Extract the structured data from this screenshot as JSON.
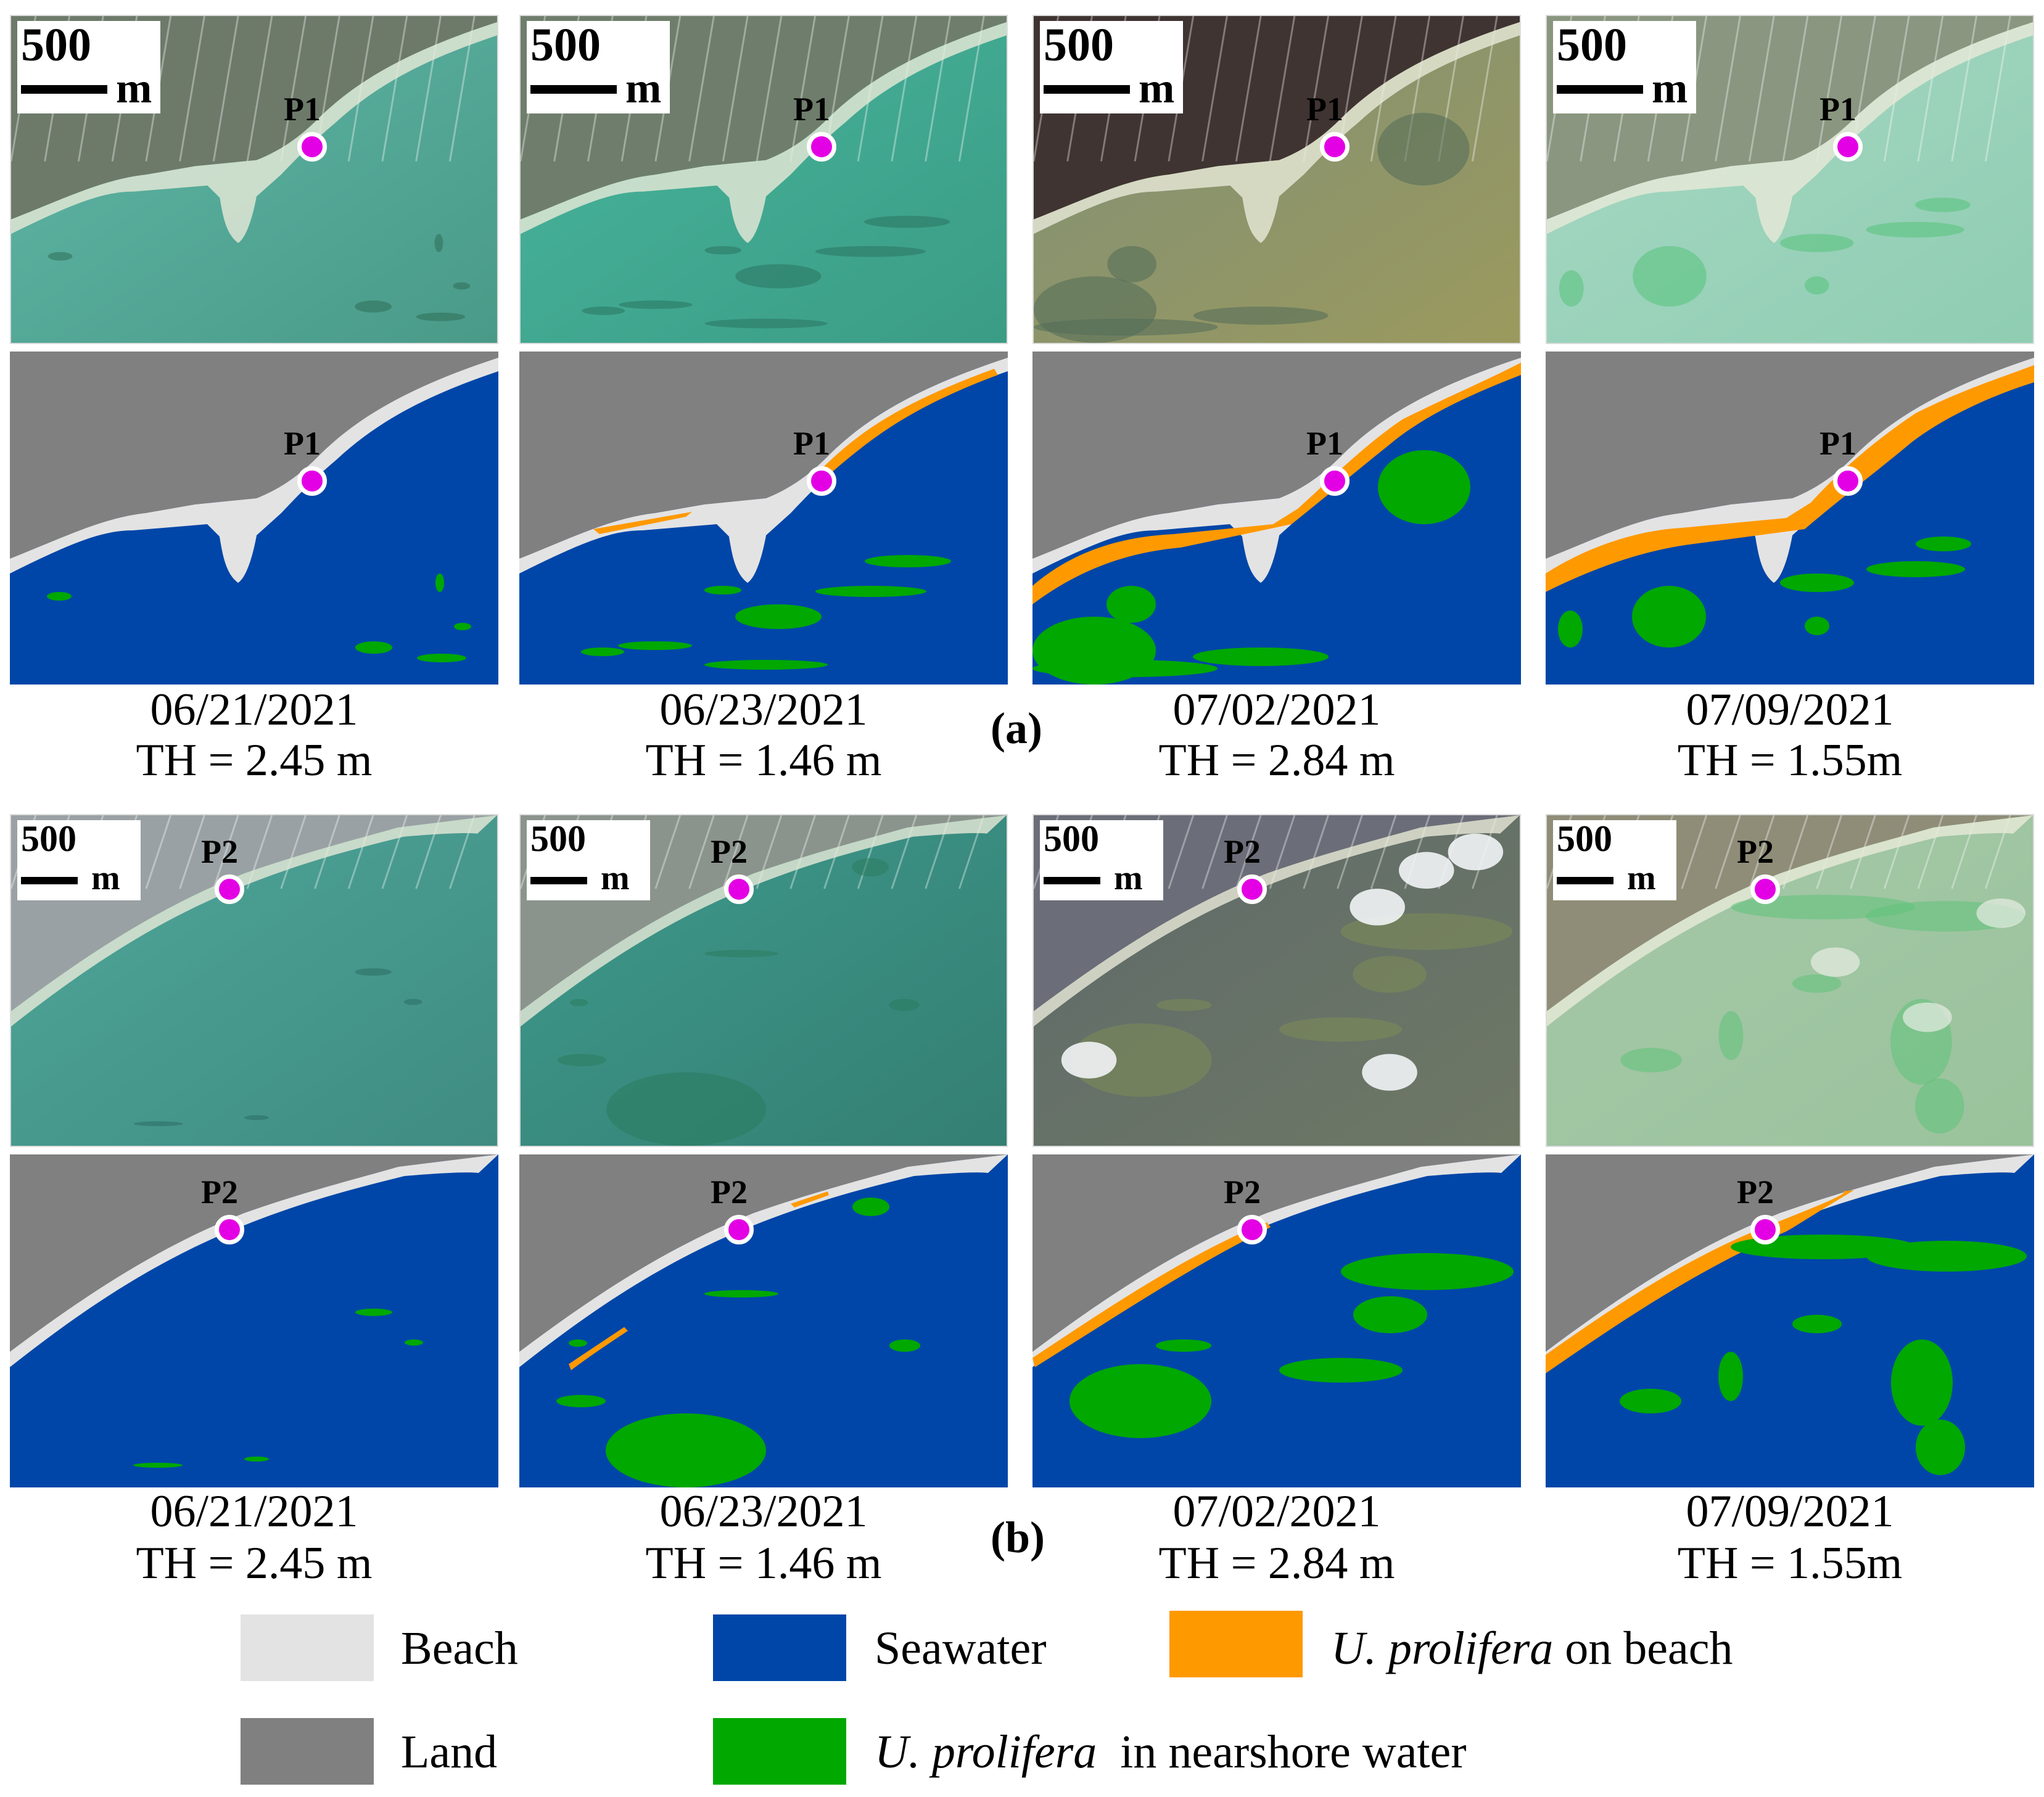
{
  "groups": [
    {
      "label": "(a)",
      "point": "P1",
      "scale": {
        "value": "500",
        "unit": "m"
      },
      "panels": [
        {
          "date": "06/21/2021",
          "th": "TH = 2.45 m"
        },
        {
          "date": "06/23/2021",
          "th": "TH = 1.46 m"
        },
        {
          "date": "07/02/2021",
          "th": "TH = 2.84 m"
        },
        {
          "date": "07/09/2021",
          "th": "TH = 1.55m"
        }
      ]
    },
    {
      "label": "(b)",
      "point": "P2",
      "scale": {
        "value": "500",
        "unit": "m"
      },
      "panels": [
        {
          "date": "06/21/2021",
          "th": "TH = 2.45 m"
        },
        {
          "date": "06/23/2021",
          "th": "TH = 1.46 m"
        },
        {
          "date": "07/02/2021",
          "th": "TH = 2.84 m"
        },
        {
          "date": "07/09/2021",
          "th": "TH = 1.55m"
        }
      ]
    }
  ],
  "legend": [
    {
      "key": "beach",
      "label": "Beach",
      "color": "#e3e3e3"
    },
    {
      "key": "land",
      "label": "Land",
      "color": "#808080"
    },
    {
      "key": "seawater",
      "label": "Seawater",
      "color": "#0046a8"
    },
    {
      "key": "nearshore",
      "label_italic": "U. prolifera",
      "label_rest": "  in nearshore water",
      "color": "#00a800"
    },
    {
      "key": "onbeach",
      "label_italic": "U. prolifera",
      "label_rest": " on beach",
      "color": "#ff9900"
    }
  ],
  "colors": {
    "marker": "#e400e4",
    "marker_ring": "#ffffff"
  }
}
